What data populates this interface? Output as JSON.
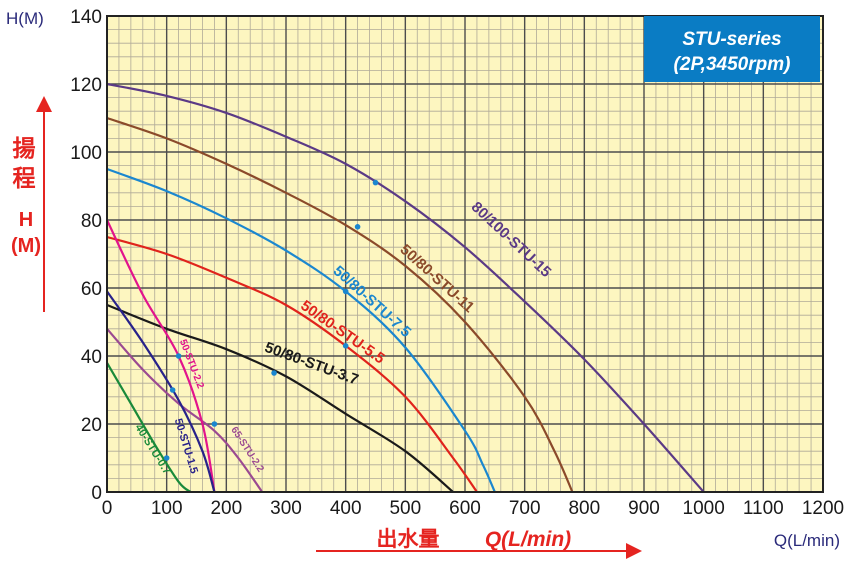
{
  "chart_data": {
    "type": "line",
    "title": "STU-series",
    "subtitle": "(2P,3450rpm)",
    "ylabel_top": "H(M)",
    "ylabel_cn": [
      "揚",
      "程"
    ],
    "ylabel_h": "H",
    "ylabel_m": "(M)",
    "xlabel_cn": "出水量",
    "xlabel_unit": "Q(L/min)",
    "xlabel_right": "Q(L/min)",
    "xlim": [
      0,
      1200
    ],
    "ylim": [
      0,
      140
    ],
    "x_ticks": [
      0,
      100,
      200,
      300,
      400,
      500,
      600,
      700,
      800,
      900,
      1000,
      1100,
      1200
    ],
    "y_ticks": [
      0,
      20,
      40,
      60,
      80,
      100,
      120,
      140
    ],
    "minor_x_step": 20,
    "minor_y_step": 4,
    "grid": true,
    "colors": {
      "plot_bg": "#fdf6c0",
      "minor_grid": "#b0aa98",
      "major_grid": "#4d4d4d",
      "axis_label": "#e52420",
      "badge_bg": "#0a7cc4",
      "axis_arrow": "#e52420"
    },
    "series": [
      {
        "name": "80/100-STU-15",
        "color": "#5b3a86",
        "x": [
          0,
          100,
          200,
          300,
          400,
          500,
          600,
          700,
          800,
          900,
          1000
        ],
        "y": [
          120,
          116.5,
          111.5,
          104.5,
          96.5,
          85.5,
          72,
          56,
          39,
          20,
          0
        ]
      },
      {
        "name": "50/80-STU-11",
        "color": "#8b4a2a",
        "x": [
          0,
          100,
          200,
          300,
          400,
          500,
          600,
          700,
          750,
          780
        ],
        "y": [
          110,
          104,
          96.5,
          88,
          78.5,
          66.5,
          50,
          28,
          12,
          0
        ]
      },
      {
        "name": "50/80-STU-7.5",
        "color": "#1b87cf",
        "x": [
          0,
          100,
          200,
          300,
          400,
          500,
          600,
          630,
          650
        ],
        "y": [
          95,
          88.5,
          80.5,
          71,
          59,
          42.5,
          18,
          8,
          0
        ]
      },
      {
        "name": "50/80-STU-5.5",
        "color": "#e0231c",
        "x": [
          0,
          100,
          200,
          300,
          400,
          500,
          580,
          620
        ],
        "y": [
          75,
          70,
          63,
          55,
          43,
          28,
          10,
          0
        ]
      },
      {
        "name": "50/80-STU-3.7",
        "color": "#1a1a1a",
        "x": [
          0,
          100,
          200,
          300,
          400,
          500,
          580
        ],
        "y": [
          55,
          48,
          42,
          34,
          23,
          12,
          0
        ]
      },
      {
        "name": "65-STU-2.2",
        "color": "#9b4a91",
        "x": [
          0,
          60,
          120,
          180,
          220,
          260
        ],
        "y": [
          48,
          36,
          26,
          18,
          10,
          0
        ]
      },
      {
        "name": "50-STU-2.2",
        "color": "#e2148c",
        "x": [
          0,
          60,
          120,
          160,
          180
        ],
        "y": [
          80,
          58,
          40,
          20,
          0
        ]
      },
      {
        "name": "50-STU-1.5",
        "color": "#28228a",
        "x": [
          0,
          60,
          120,
          160,
          180
        ],
        "y": [
          59,
          44,
          27,
          12,
          0
        ]
      },
      {
        "name": "40-STU-0.7",
        "color": "#1a8a3a",
        "x": [
          0,
          40,
          80,
          120,
          140
        ],
        "y": [
          38,
          26,
          14,
          3,
          0
        ]
      }
    ],
    "labels": [
      {
        "text": "80/100-STU-15",
        "series": 0
      },
      {
        "text": "50/80-STU-11",
        "series": 1
      },
      {
        "text": "50/80-STU-7.5",
        "series": 2
      },
      {
        "text": "50/80-STU-5.5",
        "series": 3
      },
      {
        "text": "50/80-STU-3.7",
        "series": 4
      },
      {
        "text": "65-STU-2.2",
        "series": 5
      },
      {
        "text": "50-STU-2.2",
        "series": 6
      },
      {
        "text": "50-STU-1.5",
        "series": 7
      },
      {
        "text": "40-STU-0.7",
        "series": 8
      }
    ],
    "markers": [
      {
        "series": 0,
        "x": 450,
        "y": 91
      },
      {
        "series": 1,
        "x": 420,
        "y": 78
      },
      {
        "series": 2,
        "x": 400,
        "y": 59
      },
      {
        "series": 3,
        "x": 400,
        "y": 43
      },
      {
        "series": 4,
        "x": 280,
        "y": 35
      },
      {
        "series": 5,
        "x": 180,
        "y": 20
      },
      {
        "series": 6,
        "x": 120,
        "y": 40
      },
      {
        "series": 7,
        "x": 110,
        "y": 30
      },
      {
        "series": 8,
        "x": 100,
        "y": 10
      }
    ]
  }
}
